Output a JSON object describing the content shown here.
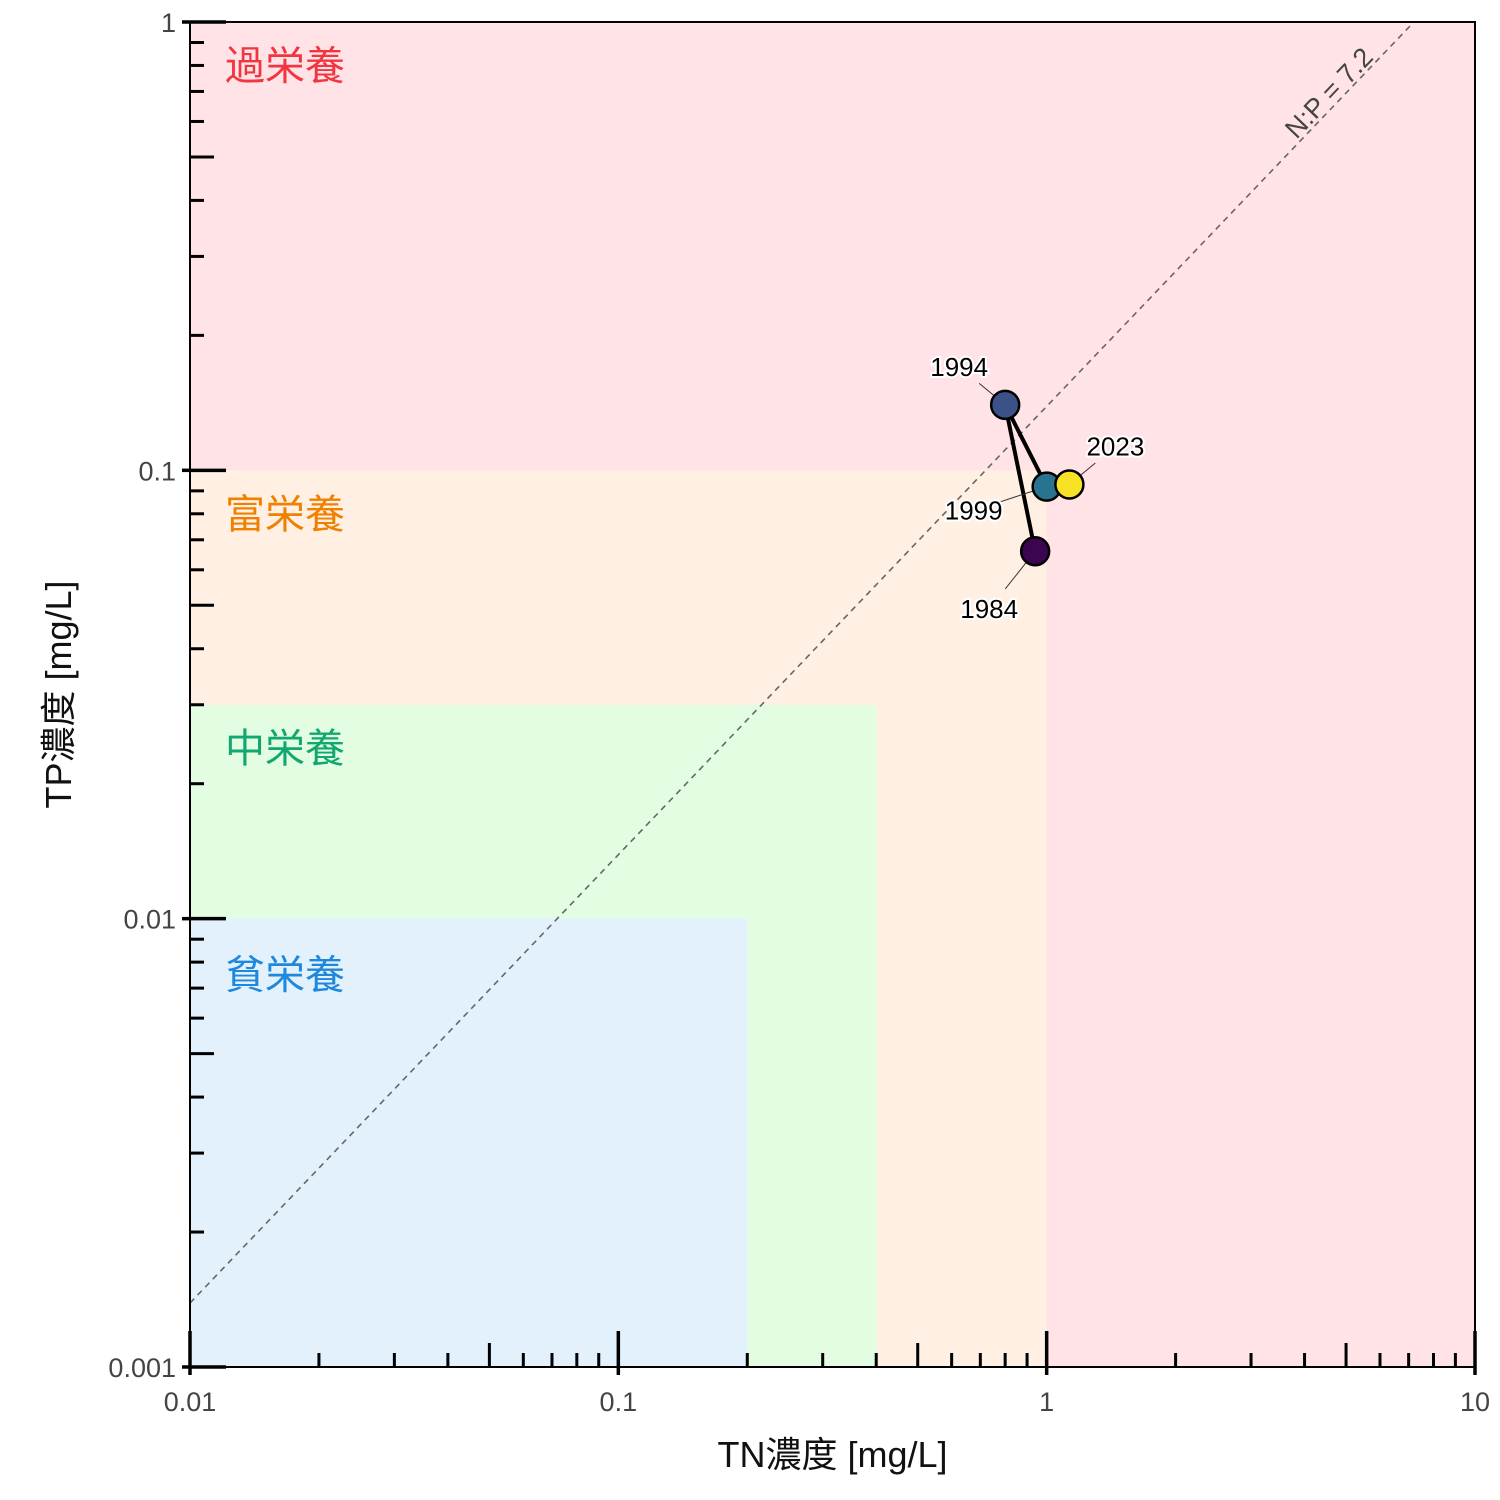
{
  "chart_data": {
    "type": "scatter",
    "title": "",
    "xlabel": "TN濃度 [mg/L]",
    "ylabel": "TP濃度 [mg/L]",
    "xscale": "log",
    "yscale": "log",
    "xlim": [
      0.01,
      10
    ],
    "ylim": [
      0.001,
      1
    ],
    "x_ticks": [
      {
        "value": 0.01,
        "label": "0.01"
      },
      {
        "value": 0.1,
        "label": "0.1"
      },
      {
        "value": 1,
        "label": "1"
      },
      {
        "value": 10,
        "label": "10"
      }
    ],
    "y_ticks": [
      {
        "value": 0.001,
        "label": "0.001"
      },
      {
        "value": 0.01,
        "label": "0.01"
      },
      {
        "value": 0.1,
        "label": "0.1"
      },
      {
        "value": 1,
        "label": "1"
      }
    ],
    "grid": false,
    "zones": [
      {
        "label": "過栄養",
        "tn_max": 10,
        "tp_max": 1,
        "color": "#ffe3e6",
        "label_color": "#f2363f",
        "label_tp": 0.8
      },
      {
        "label": "富栄養",
        "tn_max": 1,
        "tp_max": 0.1,
        "color": "#fff0e3",
        "label_color": "#f08000",
        "label_tp": 0.08
      },
      {
        "label": "中栄養",
        "tn_max": 0.4,
        "tp_max": 0.03,
        "color": "#e3fde3",
        "label_color": "#11a870",
        "label_tp": 0.024
      },
      {
        "label": "貧栄養",
        "tn_max": 0.2,
        "tp_max": 0.01,
        "color": "#e3f1fd",
        "label_color": "#1f88dd",
        "label_tp": 0.0075
      }
    ],
    "ratio_line": {
      "label": "N:P = 7.2",
      "ratio": 7.2,
      "color": "#666666"
    },
    "series": [
      {
        "points": [
          {
            "year": "1984",
            "tn": 0.94,
            "tp": 0.066,
            "color": "#3b0550",
            "label_dx": -46,
            "label_dy": 58
          },
          {
            "year": "1994",
            "tn": 0.8,
            "tp": 0.14,
            "color": "#3b5288",
            "label_dx": -46,
            "label_dy": -38
          },
          {
            "year": "1999",
            "tn": 1.0,
            "tp": 0.092,
            "color": "#2a7390",
            "label_dx": -73,
            "label_dy": 24
          },
          {
            "year": "2023",
            "tn": 1.13,
            "tp": 0.093,
            "color": "#f7e226",
            "label_dx": 46,
            "label_dy": -38
          }
        ],
        "path_order": [
          "1984",
          "1994",
          "1999",
          "2023"
        ]
      }
    ]
  }
}
